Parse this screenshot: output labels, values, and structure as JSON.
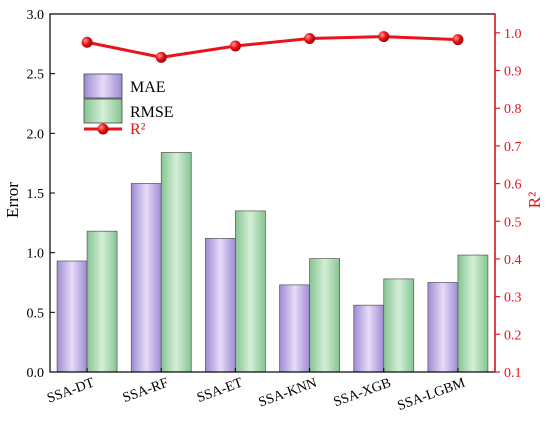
{
  "chart_data": {
    "type": "bar",
    "categories": [
      "SSA-DT",
      "SSA-RF",
      "SSA-ET",
      "SSA-KNN",
      "SSA-XGB",
      "SSA-LGBM"
    ],
    "series": [
      {
        "name": "MAE",
        "axis": "left",
        "values": [
          0.93,
          1.58,
          1.12,
          0.73,
          0.56,
          0.75
        ],
        "color": "#b9a8e2"
      },
      {
        "name": "RMSE",
        "axis": "left",
        "values": [
          1.18,
          1.84,
          1.35,
          0.95,
          0.78,
          0.98
        ],
        "color": "#9fd4a9"
      },
      {
        "name": "R²",
        "axis": "right",
        "type": "line",
        "values": [
          0.975,
          0.935,
          0.965,
          0.985,
          0.99,
          0.982
        ],
        "color": "#e8141b"
      }
    ],
    "ylabel": "Error",
    "ylabel_right": "R²",
    "ylim": [
      0.0,
      3.0
    ],
    "ylim_right": [
      0.1,
      1.05
    ],
    "yticks": [
      "0.0",
      "0.5",
      "1.0",
      "1.5",
      "2.0",
      "2.5",
      "3.0"
    ],
    "yticks_right": [
      "0.1",
      "0.2",
      "0.3",
      "0.4",
      "0.5",
      "0.6",
      "0.7",
      "0.8",
      "0.9",
      "1.0"
    ],
    "legend": {
      "position": "top-left",
      "entries": [
        "MAE",
        "RMSE",
        "R²"
      ]
    },
    "grid": false
  }
}
